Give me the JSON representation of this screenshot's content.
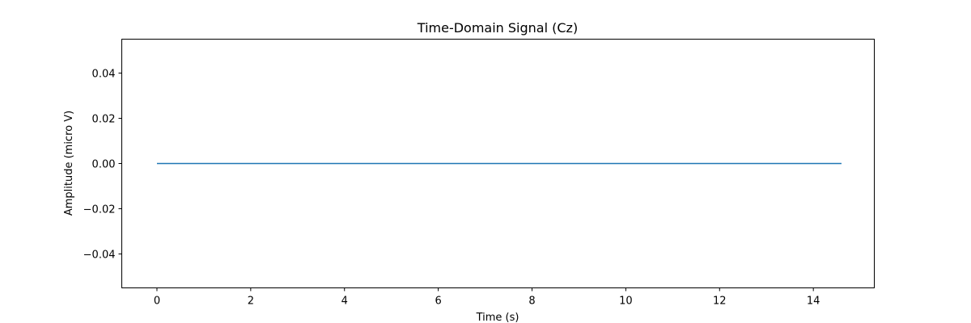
{
  "chart_data": {
    "type": "line",
    "title": "Time-Domain Signal (Cz)",
    "xlabel": "Time (s)",
    "ylabel": "Amplitude (micro V)",
    "xlim": [
      -0.75,
      15.3
    ],
    "ylim": [
      -0.055,
      0.055
    ],
    "xticks": [
      0,
      2,
      4,
      6,
      8,
      10,
      12,
      14
    ],
    "yticks": [
      -0.04,
      -0.02,
      0.0,
      0.02,
      0.04
    ],
    "ytick_labels": [
      "−0.04",
      "−0.02",
      "0.00",
      "0.02",
      "0.04"
    ],
    "grid": false,
    "series": [
      {
        "color": "#1f77b4",
        "x": [
          0,
          14.6
        ],
        "y": [
          0,
          0
        ]
      }
    ]
  }
}
